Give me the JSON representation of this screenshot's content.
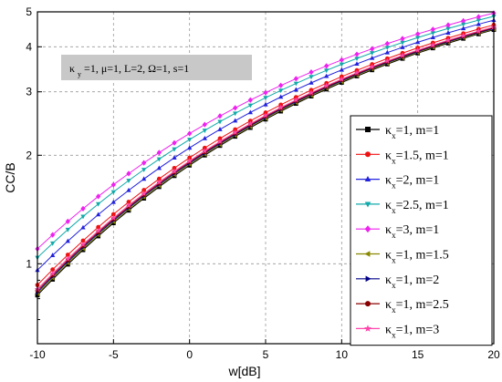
{
  "chart_data": {
    "type": "line",
    "xlabel": "w[dB]",
    "ylabel": "CC/B",
    "xlim": [
      -10,
      20
    ],
    "ylim": [
      0.6,
      5
    ],
    "yscale": "log",
    "grid": true,
    "legend_position": "right",
    "x_ticks": [
      -10,
      -5,
      0,
      5,
      10,
      15,
      20
    ],
    "y_ticks": [
      1,
      2,
      3,
      4,
      5
    ],
    "x": [
      -10,
      -9,
      -8,
      -7,
      -6,
      -5,
      -4,
      -3,
      -2,
      -1,
      0,
      1,
      2,
      3,
      4,
      5,
      6,
      7,
      8,
      9,
      10,
      11,
      12,
      13,
      14,
      15,
      16,
      17,
      18,
      19,
      20
    ],
    "annotation": {
      "main": "κ",
      "sub": "y",
      "rest": "=1, μ=1, L=2, Ω=1, s=1"
    },
    "series": [
      {
        "name_main": "κ",
        "name_sub": "x",
        "name_rest": "=1, m=1",
        "color": "#000000",
        "marker": "square",
        "start": 0.818,
        "end": 4.46
      },
      {
        "name_main": "κ",
        "name_sub": "x",
        "name_rest": "=1.5, m=1",
        "color": "#ee1111",
        "marker": "circle",
        "start": 0.873,
        "end": 4.6
      },
      {
        "name_main": "κ",
        "name_sub": "x",
        "name_rest": "=2, m=1",
        "color": "#2222dd",
        "marker": "triangle-up",
        "start": 0.96,
        "end": 4.74
      },
      {
        "name_main": "κ",
        "name_sub": "x",
        "name_rest": "=2.5, m=1",
        "color": "#11aaaa",
        "marker": "triangle-down",
        "start": 1.04,
        "end": 4.86
      },
      {
        "name_main": "κ",
        "name_sub": "x",
        "name_rest": "=3, m=1",
        "color": "#ee22ee",
        "marker": "diamond",
        "start": 1.1,
        "end": 4.96
      },
      {
        "name_main": "κ",
        "name_sub": "x",
        "name_rest": "=1, m=1.5",
        "color": "#888800",
        "marker": "triangle-left",
        "start": 0.826,
        "end": 4.48
      },
      {
        "name_main": "κ",
        "name_sub": "x",
        "name_rest": "=1, m=2",
        "color": "#000088",
        "marker": "triangle-right",
        "start": 0.834,
        "end": 4.5
      },
      {
        "name_main": "κ",
        "name_sub": "x",
        "name_rest": "=1, m=2.5",
        "color": "#880000",
        "marker": "circle",
        "start": 0.842,
        "end": 4.52
      },
      {
        "name_main": "κ",
        "name_sub": "x",
        "name_rest": "=1, m=3",
        "color": "#ff44aa",
        "marker": "star",
        "start": 0.85,
        "end": 4.54
      }
    ]
  }
}
